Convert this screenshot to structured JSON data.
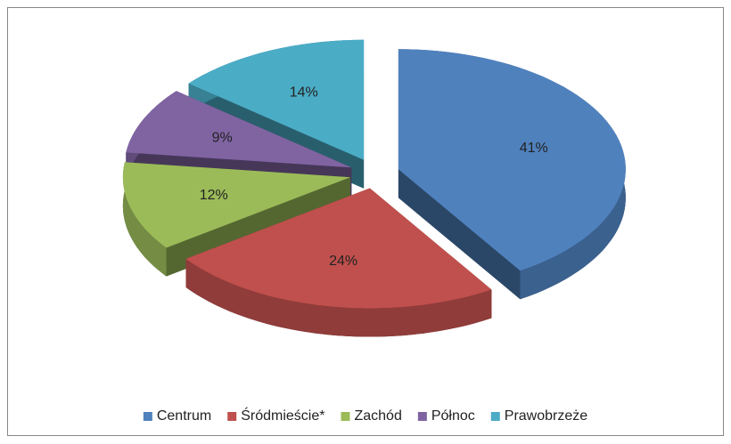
{
  "chart_data": {
    "type": "pie",
    "categories": [
      "Centrum",
      "Śródmieście*",
      "Zachód",
      "Północ",
      "Prawobrzeże"
    ],
    "values": [
      41,
      24,
      12,
      9,
      14
    ],
    "value_labels": [
      "41%",
      "24%",
      "12%",
      "9%",
      "14%"
    ],
    "colors": [
      "#4f81bd",
      "#c0504d",
      "#9bbb59",
      "#8064a2",
      "#4bacc6"
    ],
    "legend": "bottom"
  }
}
